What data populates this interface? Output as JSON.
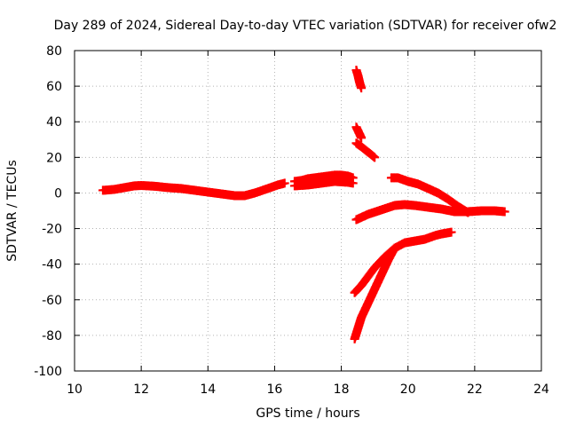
{
  "chart_data": {
    "type": "scatter",
    "title": "Day 289 of 2024, Sidereal Day-to-day VTEC variation (SDTVAR) for receiver ofw2",
    "xlabel": "GPS time / hours",
    "ylabel": "SDTVAR / TECUs",
    "xlim": [
      10,
      24
    ],
    "ylim": [
      -100,
      80
    ],
    "xticks": [
      10,
      12,
      14,
      16,
      18,
      20,
      22,
      24
    ],
    "yticks": [
      -100,
      -80,
      -60,
      -40,
      -20,
      0,
      20,
      40,
      60,
      80
    ],
    "grid": true,
    "marker": "plus",
    "color": "#ff0000",
    "series": [
      {
        "x": [
          10.85,
          11.2,
          11.5,
          11.8,
          12.0,
          12.4,
          12.8,
          13.2,
          13.6,
          14.0,
          14.4,
          14.8,
          15.1,
          15.4,
          15.8,
          16.1,
          16.3
        ],
        "y": [
          1.5,
          2.0,
          3.0,
          4.0,
          4.2,
          3.8,
          3.0,
          2.5,
          1.5,
          0.5,
          -0.5,
          -1.5,
          -1.5,
          0.0,
          2.5,
          4.5,
          5.5
        ]
      },
      {
        "x": [
          16.6,
          16.8,
          17.0,
          17.2,
          17.4,
          17.6,
          17.8,
          18.0,
          18.2,
          18.35
        ],
        "y": [
          6.5,
          7.0,
          8.0,
          8.5,
          9.0,
          9.5,
          10.0,
          10.0,
          9.5,
          8.5
        ]
      },
      {
        "x": [
          16.6,
          17.0,
          17.4,
          17.8,
          18.2,
          18.35
        ],
        "y": [
          4.0,
          4.5,
          5.5,
          6.5,
          6.0,
          5.5
        ]
      },
      {
        "x": [
          18.45,
          18.5,
          18.55,
          18.6
        ],
        "y": [
          69,
          66,
          62,
          59
        ]
      },
      {
        "x": [
          18.45,
          18.5,
          18.55,
          18.6
        ],
        "y": [
          37,
          35,
          33,
          31
        ]
      },
      {
        "x": [
          18.45,
          18.6,
          18.8,
          19.0
        ],
        "y": [
          28,
          26,
          23,
          20
        ]
      },
      {
        "x": [
          19.5,
          19.7,
          20.0,
          20.3,
          20.6,
          20.9,
          21.2,
          21.5,
          21.8
        ],
        "y": [
          8.5,
          8.5,
          6.5,
          5.0,
          2.5,
          0.0,
          -3.5,
          -7.5,
          -11.0
        ]
      },
      {
        "x": [
          18.45,
          18.8,
          19.2,
          19.6,
          19.9,
          20.2,
          20.6,
          21.0,
          21.4,
          21.8,
          22.2,
          22.6,
          22.9
        ],
        "y": [
          -15,
          -12,
          -9.5,
          -7.0,
          -6.5,
          -7.0,
          -8.0,
          -9.0,
          -10.5,
          -10.5,
          -10.0,
          -10.0,
          -10.5
        ]
      },
      {
        "x": [
          18.4,
          18.6,
          18.8,
          19.0,
          19.3,
          19.6,
          19.9,
          20.2,
          20.5,
          20.8,
          21.0,
          21.3
        ],
        "y": [
          -56,
          -52,
          -47,
          -42,
          -36,
          -31,
          -28,
          -27,
          -26,
          -24,
          -23,
          -22
        ]
      },
      {
        "x": [
          18.4,
          18.5,
          18.6,
          18.8,
          19.0,
          19.2,
          19.4,
          19.6
        ],
        "y": [
          -82,
          -76,
          -70,
          -62,
          -54,
          -46,
          -38,
          -31
        ]
      }
    ]
  }
}
